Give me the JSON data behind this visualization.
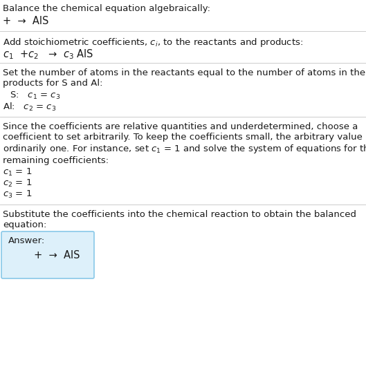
{
  "title": "Balance the chemical equation algebraically:",
  "line1": "+  →  AlS",
  "section2_header": "Add stoichiometric coefficients, $c_i$, to the reactants and products:",
  "line2": "$c_1$  +$c_2$   →  $c_3$ AlS",
  "section3_header": "Set the number of atoms in the reactants equal to the number of atoms in the\nproducts for S and Al:",
  "line3a": " S:   $c_1$ = $c_3$",
  "line3b": "Al:   $c_2$ = $c_3$",
  "section4_header": "Since the coefficients are relative quantities and underdetermined, choose a\ncoefficient to set arbitrarily. To keep the coefficients small, the arbitrary value is\nordinarily one. For instance, set $c_1$ = 1 and solve the system of equations for the\nremaining coefficients:",
  "line4a": "$c_1$ = 1",
  "line4b": "$c_2$ = 1",
  "line4c": "$c_3$ = 1",
  "section5_header": "Substitute the coefficients into the chemical reaction to obtain the balanced\nequation:",
  "answer_label": "Answer:",
  "answer_equation": "     +  →  AlS",
  "bg_color": "#ffffff",
  "text_color": "#1a1a1a",
  "line_color": "#cccccc",
  "answer_bg": "#ddf0fa",
  "answer_border": "#88c8e8",
  "font_size": 9.5,
  "line_width": 0.7
}
